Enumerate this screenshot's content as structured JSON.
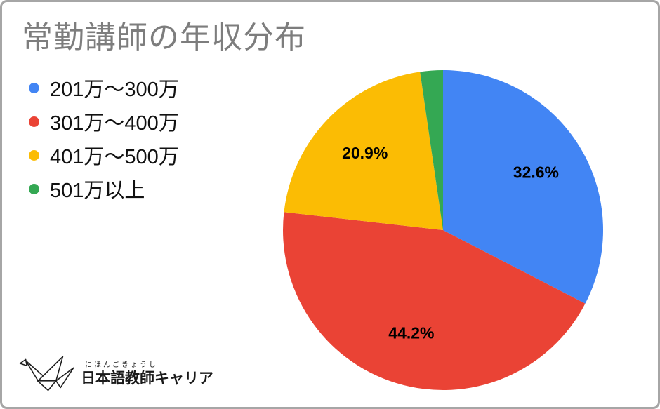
{
  "chart_data": {
    "type": "pie",
    "title": "常勤講師の年収分布",
    "labels": [
      "201万〜300万",
      "301万〜400万",
      "401万〜500万",
      "501万以上"
    ],
    "values": [
      32.6,
      44.2,
      20.9,
      2.3
    ],
    "data_labels": [
      "32.6%",
      "44.2%",
      "20.9%",
      ""
    ],
    "colors": [
      "#4285F4",
      "#EA4335",
      "#FBBC04",
      "#34A853"
    ],
    "start_angle_deg": 0,
    "direction": "clockwise",
    "legend_position": "left",
    "label_color": "#000000",
    "title_color": "#7d7d7d"
  },
  "logo": {
    "furigana": "にほんごきょうし",
    "name": "日本語教師キャリア"
  }
}
